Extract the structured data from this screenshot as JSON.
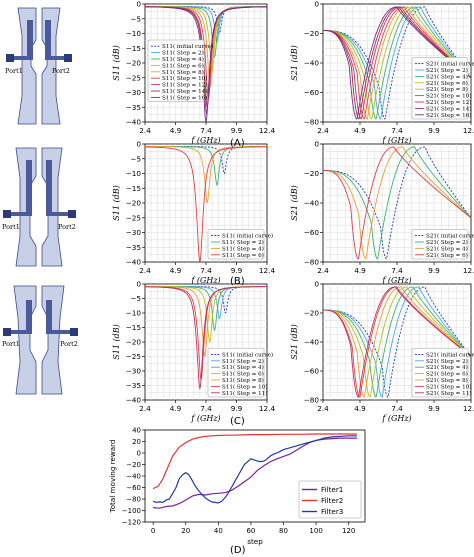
{
  "layouts": [
    {
      "ports": [
        "Port1",
        "Port2"
      ]
    },
    {
      "ports": [
        "Port1",
        "Port2"
      ]
    },
    {
      "ports": [
        "Port1",
        "Port2"
      ]
    }
  ],
  "panel_labels": [
    "(A)",
    "(B)",
    "(C)",
    "(D)"
  ],
  "chart_data": [
    {
      "type": "line",
      "panel": "A",
      "ylabel": "S11 (dB)",
      "xlabel": "f (GHz)",
      "xlim": [
        2.4,
        12.4
      ],
      "ylim": [
        -40,
        0
      ],
      "xticks": [
        2.4,
        4.9,
        7.4,
        9.9,
        12.4
      ],
      "yticks": [
        0,
        -5,
        -10,
        -15,
        -20,
        -25,
        -30,
        -35,
        -40
      ],
      "series": [
        {
          "name": "S11( initial curve)",
          "color": "#1f3bb3",
          "dashed": true,
          "dip_x": 8.5,
          "dip_y": -10
        },
        {
          "name": "S11( Step = 2)",
          "color": "#4aa8e8",
          "dip_x": 8.3,
          "dip_y": -13
        },
        {
          "name": "S11( Step = 4)",
          "color": "#3cb371",
          "dip_x": 8.1,
          "dip_y": -18
        },
        {
          "name": "S11( Step = 6)",
          "color": "#b8c020",
          "dip_x": 7.9,
          "dip_y": -23
        },
        {
          "name": "S11( Step = 8)",
          "color": "#e8a030",
          "dip_x": 7.75,
          "dip_y": -28
        },
        {
          "name": "S11( Step = 10)",
          "color": "#e04040",
          "dip_x": 7.6,
          "dip_y": -32
        },
        {
          "name": "S11( Step = 12)",
          "color": "#c03070",
          "dip_x": 7.5,
          "dip_y": -35
        },
        {
          "name": "S11( Step = 14)",
          "color": "#8b3a3a",
          "dip_x": 7.45,
          "dip_y": -37
        },
        {
          "name": "S11( Step = 16)",
          "color": "#7b2a9a",
          "dip_x": 7.4,
          "dip_y": -40
        }
      ]
    },
    {
      "type": "line",
      "panel": "A",
      "ylabel": "S21 (dB)",
      "xlabel": "f (GHz)",
      "xlim": [
        2.4,
        12.4
      ],
      "ylim": [
        -80,
        0
      ],
      "xticks": [
        2.4,
        4.9,
        7.4,
        9.9,
        12.4
      ],
      "yticks": [
        0,
        -20,
        -40,
        -60,
        -80
      ],
      "series": [
        {
          "name": "S21( initial curve)",
          "color": "#1f3bb3",
          "dashed": true,
          "notch_x": 6.6,
          "peak_x": 9.3
        },
        {
          "name": "S21( Step = 2)",
          "color": "#4aa8e8",
          "notch_x": 6.3,
          "peak_x": 9.0
        },
        {
          "name": "S21( Step = 4)",
          "color": "#3cb371",
          "notch_x": 6.0,
          "peak_x": 8.7
        },
        {
          "name": "S21( Step = 6)",
          "color": "#b8c020",
          "notch_x": 5.7,
          "peak_x": 8.4
        },
        {
          "name": "S21( Step = 8)",
          "color": "#e8a030",
          "notch_x": 5.4,
          "peak_x": 8.1
        },
        {
          "name": "S21( Step = 10)",
          "color": "#e04040",
          "notch_x": 5.2,
          "peak_x": 7.9
        },
        {
          "name": "S21( Step = 12)",
          "color": "#c03070",
          "notch_x": 5.0,
          "peak_x": 7.7
        },
        {
          "name": "S21( Step = 14)",
          "color": "#8b3a3a",
          "notch_x": 4.85,
          "peak_x": 7.55
        },
        {
          "name": "S21( Step = 16)",
          "color": "#7b2a9a",
          "notch_x": 4.7,
          "peak_x": 7.4
        }
      ]
    },
    {
      "type": "line",
      "panel": "B",
      "ylabel": "S11 (dB)",
      "xlabel": "f (GHz)",
      "xlim": [
        2.4,
        12.4
      ],
      "ylim": [
        -40,
        0
      ],
      "xticks": [
        2.4,
        4.9,
        7.4,
        9.9,
        12.4
      ],
      "yticks": [
        0,
        -5,
        -10,
        -15,
        -20,
        -25,
        -30,
        -35,
        -40
      ],
      "series": [
        {
          "name": "S11( initial curve)",
          "color": "#1f3bb3",
          "dashed": true,
          "dip_x": 8.9,
          "dip_y": -10
        },
        {
          "name": "S11( Step = 2)",
          "color": "#3cb371",
          "dip_x": 8.3,
          "dip_y": -14
        },
        {
          "name": "S11( Step = 4)",
          "color": "#e8a030",
          "dip_x": 7.5,
          "dip_y": -20
        },
        {
          "name": "S11( Step = 6)",
          "color": "#e04040",
          "dip_x": 6.9,
          "dip_y": -40
        }
      ]
    },
    {
      "type": "line",
      "panel": "B",
      "ylabel": "S21 (dB)",
      "xlabel": "f (GHz)",
      "xlim": [
        2.4,
        12.4
      ],
      "ylim": [
        -80,
        0
      ],
      "xticks": [
        2.4,
        4.9,
        7.4,
        9.9,
        12.4
      ],
      "yticks": [
        0,
        -20,
        -40,
        -60,
        -80
      ],
      "series": [
        {
          "name": "S21( initial curve)",
          "color": "#1f3bb3",
          "dashed": true,
          "notch_x": 6.7,
          "peak_x": 9.3
        },
        {
          "name": "S21( Step = 2)",
          "color": "#3cb371",
          "notch_x": 6.1,
          "peak_x": 8.6
        },
        {
          "name": "S21( Step = 4)",
          "color": "#e8a030",
          "notch_x": 5.3,
          "peak_x": 7.8
        },
        {
          "name": "S21( Step = 6)",
          "color": "#e04040",
          "notch_x": 4.8,
          "peak_x": 7.2
        }
      ]
    },
    {
      "type": "line",
      "panel": "C",
      "ylabel": "S11 (dB)",
      "xlabel": "f (GHz)",
      "xlim": [
        2.4,
        12.4
      ],
      "ylim": [
        -40,
        0
      ],
      "xticks": [
        2.4,
        4.9,
        7.4,
        9.9,
        12.4
      ],
      "yticks": [
        0,
        -5,
        -10,
        -15,
        -20,
        -25,
        -30,
        -35,
        -40
      ],
      "series": [
        {
          "name": "S11( initial curve)",
          "color": "#1f3bb3",
          "dashed": true,
          "dip_x": 9.0,
          "dip_y": -10
        },
        {
          "name": "S11( Step = 2)",
          "color": "#4aa8e8",
          "dip_x": 8.5,
          "dip_y": -12
        },
        {
          "name": "S11( Step = 4)",
          "color": "#3cb371",
          "dip_x": 8.1,
          "dip_y": -16
        },
        {
          "name": "S11( Step = 6)",
          "color": "#b8c020",
          "dip_x": 7.7,
          "dip_y": -20
        },
        {
          "name": "S11( Step = 8)",
          "color": "#e8a030",
          "dip_x": 7.3,
          "dip_y": -25
        },
        {
          "name": "S11( Step = 10)",
          "color": "#e04040",
          "dip_x": 7.0,
          "dip_y": -33
        },
        {
          "name": "S11( Step = 11)",
          "color": "#c03070",
          "dip_x": 6.9,
          "dip_y": -36
        }
      ]
    },
    {
      "type": "line",
      "panel": "C",
      "ylabel": "S21 (dB)",
      "xlabel": "f (GHz)",
      "xlim": [
        2.4,
        12.4
      ],
      "ylim": [
        -80,
        0
      ],
      "xticks": [
        2.4,
        4.9,
        7.4,
        9.9,
        12.4
      ],
      "yticks": [
        0,
        -20,
        -40,
        -60,
        -80
      ],
      "series": [
        {
          "name": "S21( initial curve)",
          "color": "#1f3bb3",
          "dashed": true,
          "notch_x": 6.8,
          "peak_x": 9.3
        },
        {
          "name": "S21( Step = 2)",
          "color": "#4aa8e8",
          "notch_x": 6.4,
          "peak_x": 8.9
        },
        {
          "name": "S21( Step = 4)",
          "color": "#3cb371",
          "notch_x": 6.0,
          "peak_x": 8.5
        },
        {
          "name": "S21( Step = 6)",
          "color": "#b8c020",
          "notch_x": 5.6,
          "peak_x": 8.1
        },
        {
          "name": "S21( Step = 8)",
          "color": "#e8a030",
          "notch_x": 5.2,
          "peak_x": 7.7
        },
        {
          "name": "S21( Step = 10)",
          "color": "#e04040",
          "notch_x": 4.9,
          "peak_x": 7.4
        },
        {
          "name": "S21( Step = 11)",
          "color": "#c03070",
          "notch_x": 4.8,
          "peak_x": 7.3
        }
      ]
    },
    {
      "type": "line",
      "panel": "D",
      "ylabel": "Total moving reward",
      "xlabel": "step",
      "xlim": [
        -5,
        130
      ],
      "ylim": [
        -120,
        40
      ],
      "xticks": [
        0,
        20,
        40,
        60,
        80,
        100,
        120
      ],
      "yticks": [
        40,
        20,
        0,
        -20,
        -40,
        -60,
        -80,
        -100,
        -120
      ],
      "legend": "lower right",
      "series": [
        {
          "name": "Filter1",
          "color": "#7a1fa2",
          "x": [
            0,
            4,
            8,
            12,
            16,
            20,
            24,
            28,
            32,
            36,
            40,
            44,
            48,
            52,
            56,
            60,
            64,
            68,
            72,
            76,
            80,
            84,
            88,
            92,
            96,
            100,
            105,
            110,
            115,
            120,
            125
          ],
          "y": [
            -95,
            -96,
            -93,
            -92,
            -88,
            -82,
            -75,
            -72,
            -73,
            -71,
            -70,
            -69,
            -65,
            -58,
            -50,
            -42,
            -30,
            -22,
            -15,
            -10,
            -6,
            -2,
            5,
            12,
            18,
            22,
            24,
            25,
            26,
            26,
            26
          ]
        },
        {
          "name": "Filter2",
          "color": "#e8322e",
          "x": [
            0,
            3,
            6,
            9,
            12,
            16,
            20,
            24,
            28,
            32,
            36,
            40,
            45,
            50,
            55,
            60,
            70,
            80,
            90,
            100,
            110,
            120,
            125
          ],
          "y": [
            -62,
            -58,
            -45,
            -25,
            -5,
            10,
            18,
            24,
            27,
            29,
            30,
            30.5,
            31,
            31,
            31.5,
            32,
            32,
            32.5,
            32.5,
            33,
            33,
            33,
            33
          ]
        },
        {
          "name": "Filter3",
          "color": "#2238a8",
          "x": [
            0,
            2,
            4,
            6,
            8,
            10,
            12,
            14,
            16,
            18,
            20,
            22,
            24,
            26,
            28,
            30,
            32,
            34,
            36,
            38,
            40,
            42,
            44,
            46,
            48,
            50,
            52,
            54,
            56,
            58,
            60,
            62,
            64,
            66,
            68,
            70,
            72,
            74,
            76,
            78,
            80,
            85,
            90,
            95,
            100,
            105,
            110,
            115,
            120,
            125
          ],
          "y": [
            -84,
            -86,
            -85,
            -86,
            -82,
            -80,
            -70,
            -60,
            -45,
            -38,
            -34,
            -38,
            -48,
            -58,
            -66,
            -72,
            -78,
            -82,
            -85,
            -86,
            -87,
            -84,
            -78,
            -70,
            -60,
            -50,
            -40,
            -30,
            -20,
            -15,
            -10,
            -12,
            -14,
            -15,
            -14,
            -10,
            -5,
            -2,
            0,
            3,
            6,
            10,
            14,
            18,
            22,
            26,
            28,
            29,
            30,
            30
          ]
        }
      ]
    }
  ]
}
